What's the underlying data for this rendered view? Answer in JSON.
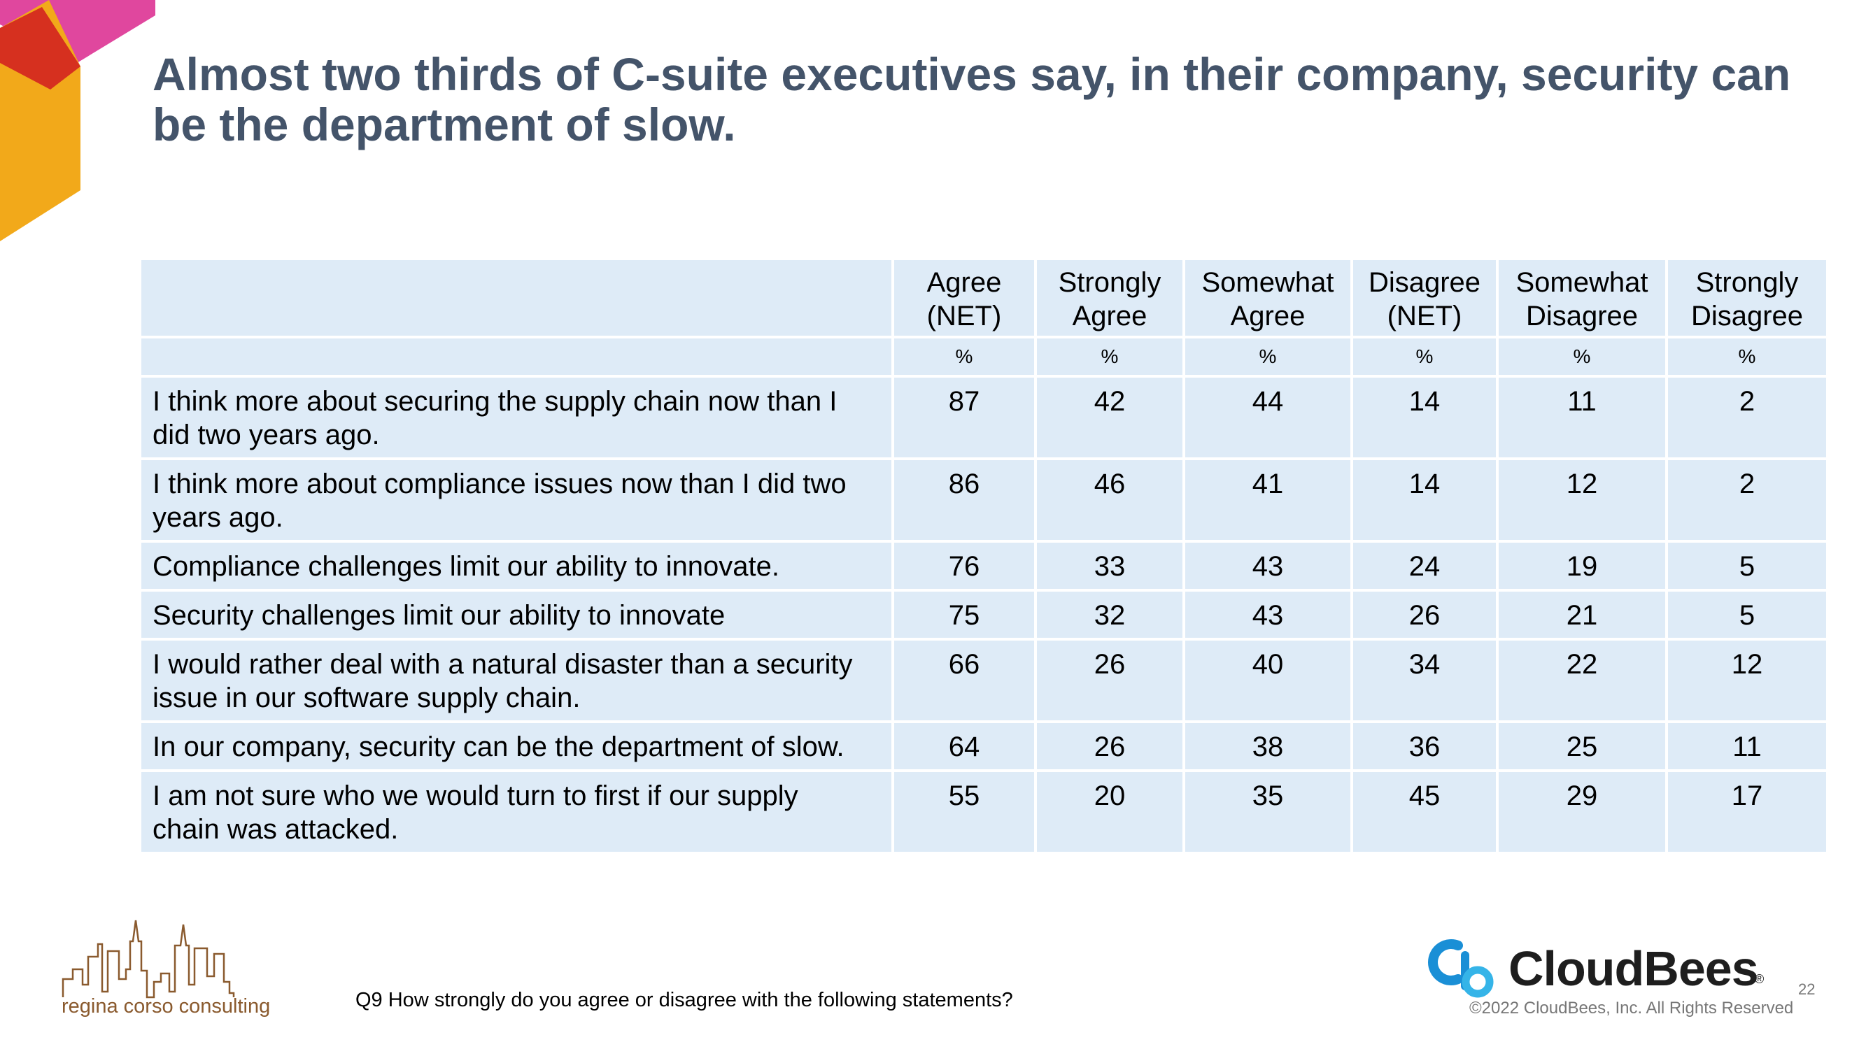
{
  "slide": {
    "title": "Almost two thirds of C-suite executives say, in their company, security can be the department of slow.",
    "question": "Q9 How strongly do you agree or disagree with the following statements?",
    "page_number": "22"
  },
  "table": {
    "headers": [
      {
        "line1": "Agree",
        "line2": "(NET)"
      },
      {
        "line1": "Strongly",
        "line2": "Agree"
      },
      {
        "line1": "Somewhat",
        "line2": "Agree"
      },
      {
        "line1": "Disagree",
        "line2": "(NET)"
      },
      {
        "line1": "Somewhat",
        "line2": "Disagree"
      },
      {
        "line1": "Strongly",
        "line2": "Disagree"
      }
    ],
    "unit": "%",
    "rows": [
      {
        "statement": "I think more about securing the supply chain now than I did two years ago.",
        "values": [
          "87",
          "42",
          "44",
          "14",
          "11",
          "2"
        ]
      },
      {
        "statement": "I think more about compliance issues now than I did two years ago.",
        "values": [
          "86",
          "46",
          "41",
          "14",
          "12",
          "2"
        ]
      },
      {
        "statement": "Compliance challenges limit our ability to innovate.",
        "values": [
          "76",
          "33",
          "43",
          "24",
          "19",
          "5"
        ]
      },
      {
        "statement": "Security challenges limit our ability to innovate",
        "values": [
          "75",
          "32",
          "43",
          "26",
          "21",
          "5"
        ]
      },
      {
        "statement": "I would rather deal with a natural disaster than a security issue in our software supply chain.",
        "values": [
          "66",
          "26",
          "40",
          "34",
          "22",
          "12"
        ]
      },
      {
        "statement": "In our company, security can be the department of slow.",
        "values": [
          "64",
          "26",
          "38",
          "36",
          "25",
          "11"
        ]
      },
      {
        "statement": "I am not sure who we would turn to first if our supply chain was attacked.",
        "values": [
          "55",
          "20",
          "35",
          "45",
          "29",
          "17"
        ]
      }
    ]
  },
  "branding": {
    "left_logo_text": "regina corso consulting",
    "right_logo_text": "CloudBees",
    "registered_mark": "®",
    "copyright": "©2022 CloudBees, Inc. All Rights Reserved"
  },
  "colors": {
    "title": "#44546A",
    "table_fill": "#DEEBF7",
    "corner_pink": "#E0479E",
    "corner_red": "#D6301F",
    "corner_yellow": "#F2A91A",
    "cloudbees_blue": "#1A8FD6",
    "rcc_brown": "#8A5A2E"
  },
  "icons": {
    "corner": "hexagon-corner-decoration",
    "left_logo": "city-skyline-logo",
    "right_logo": "cloudbees-cb-logo"
  }
}
